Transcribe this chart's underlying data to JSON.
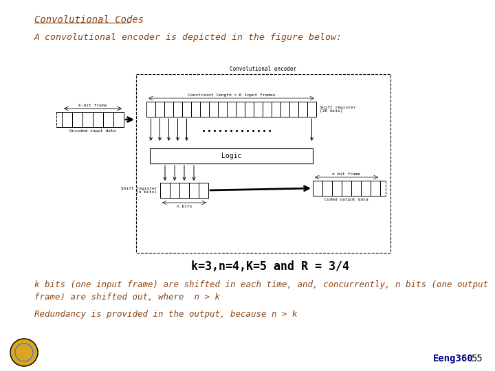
{
  "title": "Convolutional Codes",
  "subtitle": "A convolutional encoder is depicted in the figure below:",
  "caption": "k=3,n=4,K=5 and R = 3/4",
  "text1": "k bits (one input frame) are shifted in each time, and, concurrently, n bits (one output\nframe) are shifted out, where  n > k",
  "text2": "Redundancy is provided in the output, because n > k",
  "footer": "Eeng360",
  "page_num": "55",
  "bg_color": "#FFFFFF",
  "title_color": "#8B4513",
  "text_color": "#8B4513",
  "caption_color": "#000000",
  "footer_color": "#00008B"
}
